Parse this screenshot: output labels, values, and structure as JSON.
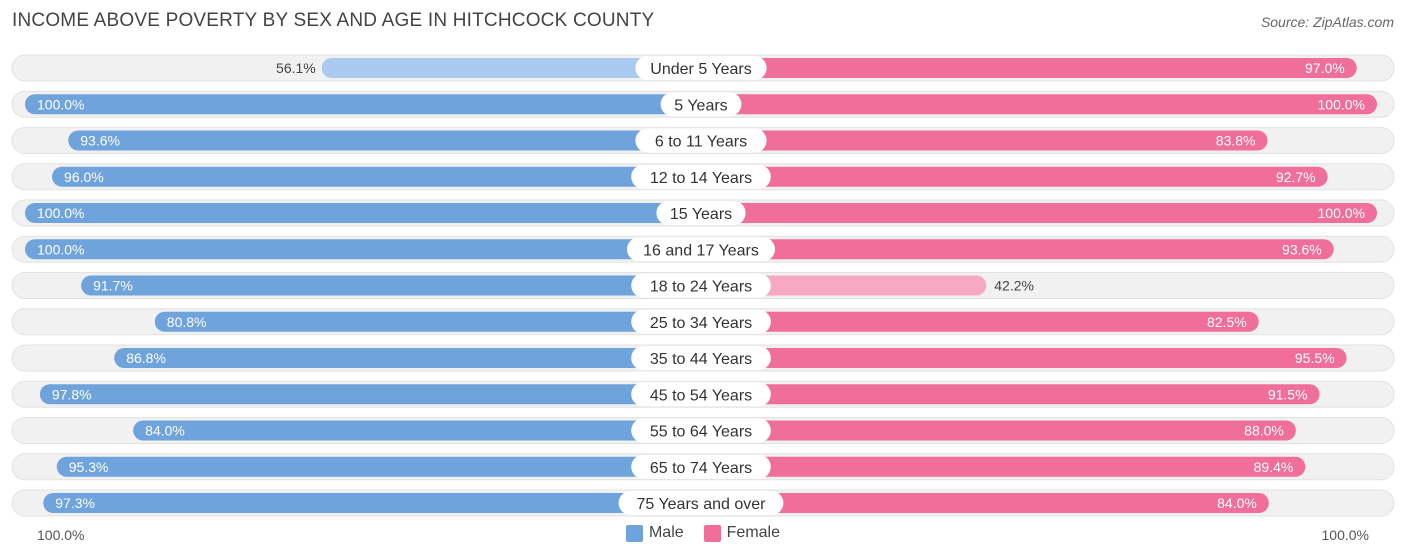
{
  "title": "INCOME ABOVE POVERTY BY SEX AND AGE IN HITCHCOCK COUNTY",
  "source": "Source: ZipAtlas.com",
  "axis": {
    "left_label": "100.0%",
    "right_label": "100.0%"
  },
  "legend": [
    {
      "label": "Male",
      "color": "#6fa3dc"
    },
    {
      "label": "Female",
      "color": "#f06e9a"
    }
  ],
  "colors": {
    "male_strong": "#6fa3dc",
    "male_light": "#aac9ef",
    "female_strong": "#f06e9a",
    "female_light": "#f7a9c4",
    "track": "#f1f1f1"
  },
  "chart_data": {
    "type": "bar",
    "orientation": "horizontal-diverging",
    "title": "INCOME ABOVE POVERTY BY SEX AND AGE IN HITCHCOCK COUNTY",
    "xlim": [
      0,
      100
    ],
    "categories": [
      "Under 5 Years",
      "5 Years",
      "6 to 11 Years",
      "12 to 14 Years",
      "15 Years",
      "16 and 17 Years",
      "18 to 24 Years",
      "25 to 34 Years",
      "35 to 44 Years",
      "45 to 54 Years",
      "55 to 64 Years",
      "65 to 74 Years",
      "75 Years and over"
    ],
    "series": [
      {
        "name": "Male",
        "values": [
          56.1,
          100.0,
          93.6,
          96.0,
          100.0,
          100.0,
          91.7,
          80.8,
          86.8,
          97.8,
          84.0,
          95.3,
          97.3
        ],
        "labels": [
          "56.1%",
          "100.0%",
          "93.6%",
          "96.0%",
          "100.0%",
          "100.0%",
          "91.7%",
          "80.8%",
          "86.8%",
          "97.8%",
          "84.0%",
          "95.3%",
          "97.3%"
        ]
      },
      {
        "name": "Female",
        "values": [
          97.0,
          100.0,
          83.8,
          92.7,
          100.0,
          93.6,
          42.2,
          82.5,
          95.5,
          91.5,
          88.0,
          89.4,
          84.0
        ],
        "labels": [
          "97.0%",
          "100.0%",
          "83.8%",
          "92.7%",
          "100.0%",
          "93.6%",
          "42.2%",
          "82.5%",
          "95.5%",
          "91.5%",
          "88.0%",
          "89.4%",
          "84.0%"
        ]
      }
    ]
  }
}
